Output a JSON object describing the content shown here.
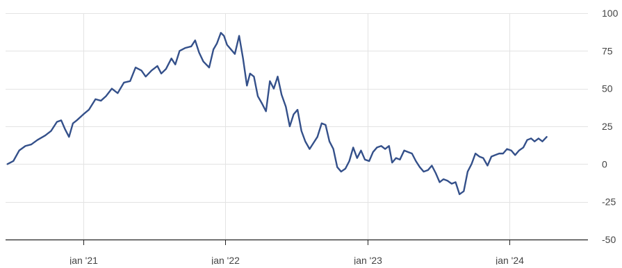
{
  "chart_data": {
    "type": "line",
    "title": "",
    "xlabel": "",
    "ylabel": "",
    "x_axis": {
      "domain": [
        "2020-06-15",
        "2024-07-20"
      ],
      "ticks": [
        {
          "label": "jan '21",
          "date": "2021-01-01"
        },
        {
          "label": "jan '22",
          "date": "2022-01-01"
        },
        {
          "label": "jan '23",
          "date": "2023-01-01"
        },
        {
          "label": "jan '24",
          "date": "2024-01-01"
        }
      ]
    },
    "y_axis": {
      "range": [
        -50,
        100
      ],
      "ticks": [
        100,
        75,
        50,
        25,
        0,
        -25,
        -50
      ],
      "position": "right"
    },
    "grid": true,
    "line_color": "#34508a",
    "grid_color": "#e3e3e3",
    "axis_color": "#222222",
    "label_color": "#444444",
    "series": [
      {
        "values": [
          [
            "2020-06-20",
            0
          ],
          [
            "2020-07-05",
            2
          ],
          [
            "2020-07-20",
            9
          ],
          [
            "2020-08-05",
            12
          ],
          [
            "2020-08-20",
            13
          ],
          [
            "2020-09-05",
            16
          ],
          [
            "2020-09-25",
            19
          ],
          [
            "2020-10-10",
            22
          ],
          [
            "2020-10-25",
            28
          ],
          [
            "2020-11-05",
            29
          ],
          [
            "2020-11-15",
            23
          ],
          [
            "2020-11-25",
            18
          ],
          [
            "2020-12-05",
            27
          ],
          [
            "2020-12-15",
            29
          ],
          [
            "2021-01-01",
            33
          ],
          [
            "2021-01-15",
            36
          ],
          [
            "2021-02-01",
            43
          ],
          [
            "2021-02-15",
            42
          ],
          [
            "2021-02-28",
            45
          ],
          [
            "2021-03-15",
            50
          ],
          [
            "2021-03-30",
            47
          ],
          [
            "2021-04-15",
            54
          ],
          [
            "2021-05-01",
            55
          ],
          [
            "2021-05-15",
            64
          ],
          [
            "2021-05-30",
            62
          ],
          [
            "2021-06-10",
            58
          ],
          [
            "2021-06-25",
            62
          ],
          [
            "2021-07-10",
            65
          ],
          [
            "2021-07-20",
            60
          ],
          [
            "2021-08-01",
            63
          ],
          [
            "2021-08-15",
            70
          ],
          [
            "2021-08-25",
            66
          ],
          [
            "2021-09-05",
            75
          ],
          [
            "2021-09-20",
            77
          ],
          [
            "2021-10-05",
            78
          ],
          [
            "2021-10-15",
            82
          ],
          [
            "2021-10-25",
            74
          ],
          [
            "2021-11-05",
            68
          ],
          [
            "2021-11-20",
            64
          ],
          [
            "2021-12-01",
            76
          ],
          [
            "2021-12-10",
            80
          ],
          [
            "2021-12-20",
            87
          ],
          [
            "2021-12-28",
            85
          ],
          [
            "2022-01-05",
            79
          ],
          [
            "2022-01-15",
            76
          ],
          [
            "2022-01-25",
            73
          ],
          [
            "2022-02-05",
            85
          ],
          [
            "2022-02-15",
            70
          ],
          [
            "2022-02-25",
            52
          ],
          [
            "2022-03-05",
            60
          ],
          [
            "2022-03-15",
            58
          ],
          [
            "2022-03-25",
            45
          ],
          [
            "2022-04-05",
            40
          ],
          [
            "2022-04-15",
            35
          ],
          [
            "2022-04-25",
            55
          ],
          [
            "2022-05-05",
            50
          ],
          [
            "2022-05-15",
            58
          ],
          [
            "2022-05-25",
            46
          ],
          [
            "2022-06-05",
            38
          ],
          [
            "2022-06-15",
            25
          ],
          [
            "2022-06-25",
            33
          ],
          [
            "2022-07-05",
            36
          ],
          [
            "2022-07-15",
            22
          ],
          [
            "2022-07-25",
            15
          ],
          [
            "2022-08-05",
            10
          ],
          [
            "2022-08-15",
            14
          ],
          [
            "2022-08-25",
            18
          ],
          [
            "2022-09-05",
            27
          ],
          [
            "2022-09-15",
            26
          ],
          [
            "2022-09-25",
            15
          ],
          [
            "2022-10-05",
            10
          ],
          [
            "2022-10-15",
            -2
          ],
          [
            "2022-10-25",
            -5
          ],
          [
            "2022-11-05",
            -3
          ],
          [
            "2022-11-15",
            2
          ],
          [
            "2022-11-25",
            11
          ],
          [
            "2022-12-05",
            4
          ],
          [
            "2022-12-15",
            9
          ],
          [
            "2022-12-25",
            3
          ],
          [
            "2023-01-05",
            2
          ],
          [
            "2023-01-15",
            8
          ],
          [
            "2023-01-25",
            11
          ],
          [
            "2023-02-05",
            12
          ],
          [
            "2023-02-15",
            10
          ],
          [
            "2023-02-25",
            12
          ],
          [
            "2023-03-05",
            1
          ],
          [
            "2023-03-15",
            4
          ],
          [
            "2023-03-25",
            3
          ],
          [
            "2023-04-05",
            9
          ],
          [
            "2023-04-15",
            8
          ],
          [
            "2023-04-25",
            7
          ],
          [
            "2023-05-05",
            2
          ],
          [
            "2023-05-15",
            -2
          ],
          [
            "2023-05-25",
            -5
          ],
          [
            "2023-06-05",
            -4
          ],
          [
            "2023-06-15",
            -1
          ],
          [
            "2023-06-25",
            -6
          ],
          [
            "2023-07-05",
            -12
          ],
          [
            "2023-07-15",
            -10
          ],
          [
            "2023-07-25",
            -11
          ],
          [
            "2023-08-05",
            -13
          ],
          [
            "2023-08-15",
            -12
          ],
          [
            "2023-08-25",
            -20
          ],
          [
            "2023-09-05",
            -18
          ],
          [
            "2023-09-15",
            -5
          ],
          [
            "2023-09-25",
            0
          ],
          [
            "2023-10-05",
            7
          ],
          [
            "2023-10-15",
            5
          ],
          [
            "2023-10-25",
            4
          ],
          [
            "2023-11-05",
            -1
          ],
          [
            "2023-11-15",
            5
          ],
          [
            "2023-11-25",
            6
          ],
          [
            "2023-12-05",
            7
          ],
          [
            "2023-12-15",
            7
          ],
          [
            "2023-12-25",
            10
          ],
          [
            "2024-01-05",
            9
          ],
          [
            "2024-01-15",
            6
          ],
          [
            "2024-01-25",
            9
          ],
          [
            "2024-02-05",
            11
          ],
          [
            "2024-02-15",
            16
          ],
          [
            "2024-02-25",
            17
          ],
          [
            "2024-03-05",
            15
          ],
          [
            "2024-03-15",
            17
          ],
          [
            "2024-03-25",
            15
          ],
          [
            "2024-04-05",
            18
          ]
        ]
      }
    ]
  }
}
